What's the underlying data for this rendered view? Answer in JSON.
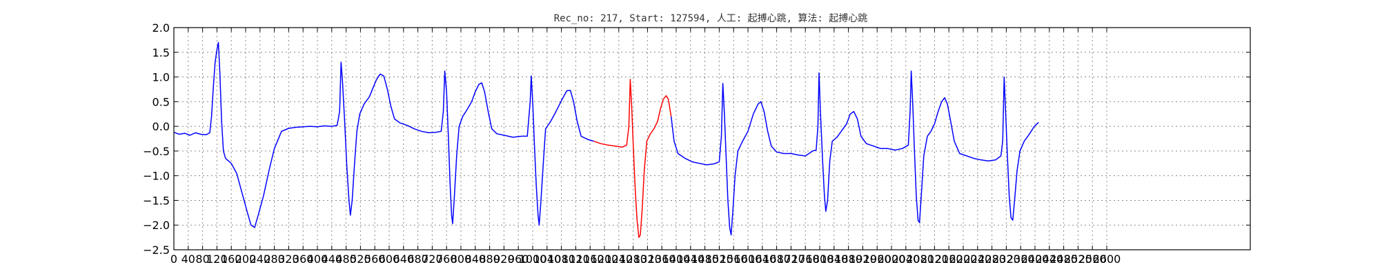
{
  "chart_data": {
    "type": "line",
    "title": "Rec_no: 217, Start: 127594, 人工: 起搏心跳, 算法: 起搏心跳",
    "xlabel": "",
    "ylabel": "",
    "xlim": [
      0,
      3000
    ],
    "ylim": [
      -2.5,
      2.0
    ],
    "grid": true,
    "yticks": [
      2.0,
      1.5,
      1.0,
      0.5,
      0.0,
      -0.5,
      -1.0,
      -1.5,
      -2.0,
      -2.5
    ],
    "ytick_labels": [
      "2.0",
      "1.5",
      "1.0",
      "0.5",
      "0.0",
      "−0.5",
      "−1.0",
      "−1.5",
      "−2.0",
      "−2.5"
    ],
    "xticks": [
      0,
      40,
      80,
      120,
      160,
      200,
      240,
      280,
      320,
      360,
      400,
      440,
      480,
      520,
      560,
      600,
      640,
      680,
      720,
      760,
      800,
      840,
      880,
      920,
      960,
      1000,
      1040,
      1080,
      1120,
      1160,
      1200,
      1240,
      1280,
      1320,
      1360,
      1400,
      1440,
      1480,
      1520,
      1560,
      1600,
      1640,
      1680,
      1720,
      1760,
      1800,
      1840,
      1880,
      1920,
      1960,
      2000,
      2040,
      2080,
      2120,
      2160,
      2200,
      2240,
      2280,
      2320,
      2360,
      2400,
      2440,
      2480,
      2520,
      2560,
      2600
    ],
    "xtick_labels": [
      "0",
      "40",
      "80",
      "120",
      "160",
      "200",
      "240",
      "280",
      "320",
      "360",
      "400",
      "440",
      "480",
      "520",
      "560",
      "600",
      "640",
      "680",
      "720",
      "760",
      "800",
      "840",
      "880",
      "920",
      "960",
      "1000",
      "1040",
      "1080",
      "1120",
      "1160",
      "1200",
      "1240",
      "1280",
      "1320",
      "1360",
      "1400",
      "1440",
      "1480",
      "1520",
      "1560",
      "1600",
      "1640",
      "1680",
      "1720",
      "1760",
      "1800",
      "1840",
      "1880",
      "1920",
      "1960",
      "2000",
      "2040",
      "2080",
      "2120",
      "2160",
      "2200",
      "2240",
      "2280",
      "2320",
      "2360",
      "2400",
      "2440",
      "2480",
      "2520",
      "2560",
      "2600"
    ],
    "series": [
      {
        "color": "#0000ff",
        "points": [
          [
            0,
            -0.12
          ],
          [
            15,
            -0.16
          ],
          [
            30,
            -0.14
          ],
          [
            45,
            -0.18
          ],
          [
            60,
            -0.13
          ],
          [
            75,
            -0.16
          ],
          [
            90,
            -0.17
          ],
          [
            100,
            -0.13
          ],
          [
            105,
            0.2
          ],
          [
            110,
            0.8
          ],
          [
            115,
            1.3
          ],
          [
            120,
            1.55
          ],
          [
            124,
            1.7
          ],
          [
            128,
            1.1
          ],
          [
            133,
            0.1
          ],
          [
            138,
            -0.5
          ],
          [
            144,
            -0.65
          ],
          [
            160,
            -0.75
          ],
          [
            175,
            -0.95
          ],
          [
            190,
            -1.35
          ],
          [
            205,
            -1.75
          ],
          [
            215,
            -2.0
          ],
          [
            225,
            -2.05
          ],
          [
            235,
            -1.8
          ],
          [
            250,
            -1.4
          ],
          [
            265,
            -0.9
          ],
          [
            280,
            -0.45
          ],
          [
            300,
            -0.1
          ],
          [
            320,
            -0.04
          ],
          [
            340,
            -0.02
          ],
          [
            360,
            -0.01
          ],
          [
            380,
            0.0
          ],
          [
            400,
            -0.01
          ],
          [
            420,
            0.01
          ],
          [
            440,
            0.0
          ],
          [
            455,
            0.02
          ],
          [
            462,
            0.3
          ],
          [
            466,
            1.3
          ],
          [
            470,
            0.9
          ],
          [
            476,
            0.1
          ],
          [
            482,
            -0.8
          ],
          [
            488,
            -1.5
          ],
          [
            492,
            -1.8
          ],
          [
            497,
            -1.5
          ],
          [
            503,
            -0.8
          ],
          [
            510,
            -0.1
          ],
          [
            518,
            0.25
          ],
          [
            530,
            0.45
          ],
          [
            545,
            0.6
          ],
          [
            555,
            0.78
          ],
          [
            565,
            0.95
          ],
          [
            575,
            1.06
          ],
          [
            585,
            1.02
          ],
          [
            595,
            0.75
          ],
          [
            605,
            0.4
          ],
          [
            615,
            0.15
          ],
          [
            630,
            0.07
          ],
          [
            650,
            0.02
          ],
          [
            670,
            -0.05
          ],
          [
            690,
            -0.1
          ],
          [
            710,
            -0.13
          ],
          [
            730,
            -0.12
          ],
          [
            745,
            -0.1
          ],
          [
            751,
            0.3
          ],
          [
            755,
            1.12
          ],
          [
            760,
            0.7
          ],
          [
            765,
            -0.2
          ],
          [
            770,
            -1.2
          ],
          [
            774,
            -1.8
          ],
          [
            777,
            -1.97
          ],
          [
            782,
            -1.4
          ],
          [
            788,
            -0.6
          ],
          [
            795,
            0.0
          ],
          [
            805,
            0.2
          ],
          [
            818,
            0.35
          ],
          [
            830,
            0.5
          ],
          [
            840,
            0.7
          ],
          [
            850,
            0.85
          ],
          [
            858,
            0.88
          ],
          [
            866,
            0.7
          ],
          [
            876,
            0.3
          ],
          [
            886,
            -0.05
          ],
          [
            900,
            -0.15
          ],
          [
            920,
            -0.18
          ],
          [
            945,
            -0.22
          ],
          [
            970,
            -0.2
          ],
          [
            985,
            -0.2
          ],
          [
            993,
            0.5
          ],
          [
            996,
            1.02
          ],
          [
            1000,
            0.5
          ],
          [
            1005,
            -0.4
          ],
          [
            1010,
            -1.2
          ],
          [
            1015,
            -1.8
          ],
          [
            1018,
            -2.0
          ],
          [
            1023,
            -1.5
          ],
          [
            1030,
            -0.7
          ],
          [
            1036,
            -0.05
          ],
          [
            1050,
            0.1
          ],
          [
            1065,
            0.3
          ],
          [
            1080,
            0.52
          ],
          [
            1095,
            0.72
          ],
          [
            1105,
            0.73
          ],
          [
            1114,
            0.5
          ],
          [
            1124,
            0.1
          ],
          [
            1135,
            -0.2
          ],
          [
            1155,
            -0.27
          ],
          [
            1170,
            -0.3
          ]
        ]
      },
      {
        "color": "#ff0000",
        "points": [
          [
            1170,
            -0.3
          ],
          [
            1190,
            -0.35
          ],
          [
            1210,
            -0.38
          ],
          [
            1230,
            -0.4
          ],
          [
            1250,
            -0.42
          ],
          [
            1262,
            -0.38
          ],
          [
            1268,
            0.0
          ],
          [
            1272,
            0.95
          ],
          [
            1276,
            0.4
          ],
          [
            1281,
            -0.5
          ],
          [
            1286,
            -1.3
          ],
          [
            1291,
            -1.9
          ],
          [
            1296,
            -2.25
          ],
          [
            1300,
            -2.2
          ],
          [
            1305,
            -1.7
          ],
          [
            1311,
            -0.9
          ],
          [
            1318,
            -0.3
          ],
          [
            1328,
            -0.15
          ],
          [
            1338,
            -0.05
          ],
          [
            1348,
            0.1
          ],
          [
            1356,
            0.35
          ],
          [
            1364,
            0.55
          ],
          [
            1372,
            0.62
          ],
          [
            1378,
            0.55
          ],
          [
            1386,
            0.2
          ]
        ]
      },
      {
        "color": "#0000ff",
        "points": [
          [
            1386,
            0.2
          ],
          [
            1394,
            -0.3
          ],
          [
            1405,
            -0.55
          ],
          [
            1425,
            -0.65
          ],
          [
            1445,
            -0.72
          ],
          [
            1465,
            -0.75
          ],
          [
            1485,
            -0.78
          ],
          [
            1505,
            -0.76
          ],
          [
            1520,
            -0.72
          ],
          [
            1526,
            -0.2
          ],
          [
            1530,
            0.87
          ],
          [
            1534,
            0.3
          ],
          [
            1539,
            -0.6
          ],
          [
            1544,
            -1.5
          ],
          [
            1549,
            -2.05
          ],
          [
            1553,
            -2.2
          ],
          [
            1558,
            -1.7
          ],
          [
            1564,
            -1.0
          ],
          [
            1572,
            -0.5
          ],
          [
            1585,
            -0.3
          ],
          [
            1600,
            -0.1
          ],
          [
            1615,
            0.25
          ],
          [
            1628,
            0.45
          ],
          [
            1636,
            0.5
          ],
          [
            1645,
            0.3
          ],
          [
            1655,
            -0.1
          ],
          [
            1665,
            -0.4
          ],
          [
            1680,
            -0.52
          ],
          [
            1700,
            -0.55
          ],
          [
            1720,
            -0.55
          ],
          [
            1740,
            -0.58
          ],
          [
            1760,
            -0.6
          ],
          [
            1780,
            -0.5
          ],
          [
            1790,
            -0.48
          ],
          [
            1795,
            0.0
          ],
          [
            1798,
            1.08
          ],
          [
            1802,
            0.3
          ],
          [
            1808,
            -0.7
          ],
          [
            1813,
            -1.4
          ],
          [
            1817,
            -1.72
          ],
          [
            1822,
            -1.5
          ],
          [
            1828,
            -0.7
          ],
          [
            1835,
            -0.3
          ],
          [
            1848,
            -0.22
          ],
          [
            1860,
            -0.1
          ],
          [
            1875,
            0.05
          ],
          [
            1885,
            0.25
          ],
          [
            1895,
            0.3
          ],
          [
            1905,
            0.15
          ],
          [
            1915,
            -0.2
          ],
          [
            1930,
            -0.35
          ],
          [
            1950,
            -0.4
          ],
          [
            1970,
            -0.45
          ],
          [
            1990,
            -0.45
          ],
          [
            2010,
            -0.48
          ],
          [
            2030,
            -0.45
          ],
          [
            2047,
            -0.38
          ],
          [
            2052,
            0.3
          ],
          [
            2055,
            1.12
          ],
          [
            2059,
            0.5
          ],
          [
            2064,
            -0.5
          ],
          [
            2069,
            -1.4
          ],
          [
            2074,
            -1.9
          ],
          [
            2078,
            -1.95
          ],
          [
            2083,
            -1.4
          ],
          [
            2090,
            -0.6
          ],
          [
            2100,
            -0.2
          ],
          [
            2110,
            -0.1
          ],
          [
            2120,
            0.05
          ],
          [
            2130,
            0.3
          ],
          [
            2140,
            0.5
          ],
          [
            2148,
            0.58
          ],
          [
            2156,
            0.45
          ],
          [
            2165,
            0.1
          ],
          [
            2175,
            -0.3
          ],
          [
            2190,
            -0.55
          ],
          [
            2210,
            -0.6
          ],
          [
            2230,
            -0.65
          ],
          [
            2250,
            -0.68
          ],
          [
            2270,
            -0.7
          ],
          [
            2290,
            -0.68
          ],
          [
            2305,
            -0.6
          ],
          [
            2310,
            -0.3
          ],
          [
            2314,
            1.0
          ],
          [
            2318,
            0.3
          ],
          [
            2323,
            -0.6
          ],
          [
            2328,
            -1.4
          ],
          [
            2333,
            -1.85
          ],
          [
            2338,
            -1.9
          ],
          [
            2343,
            -1.5
          ],
          [
            2350,
            -0.9
          ],
          [
            2358,
            -0.5
          ],
          [
            2370,
            -0.3
          ],
          [
            2385,
            -0.15
          ],
          [
            2398,
            0.0
          ],
          [
            2410,
            0.08
          ]
        ]
      }
    ]
  }
}
